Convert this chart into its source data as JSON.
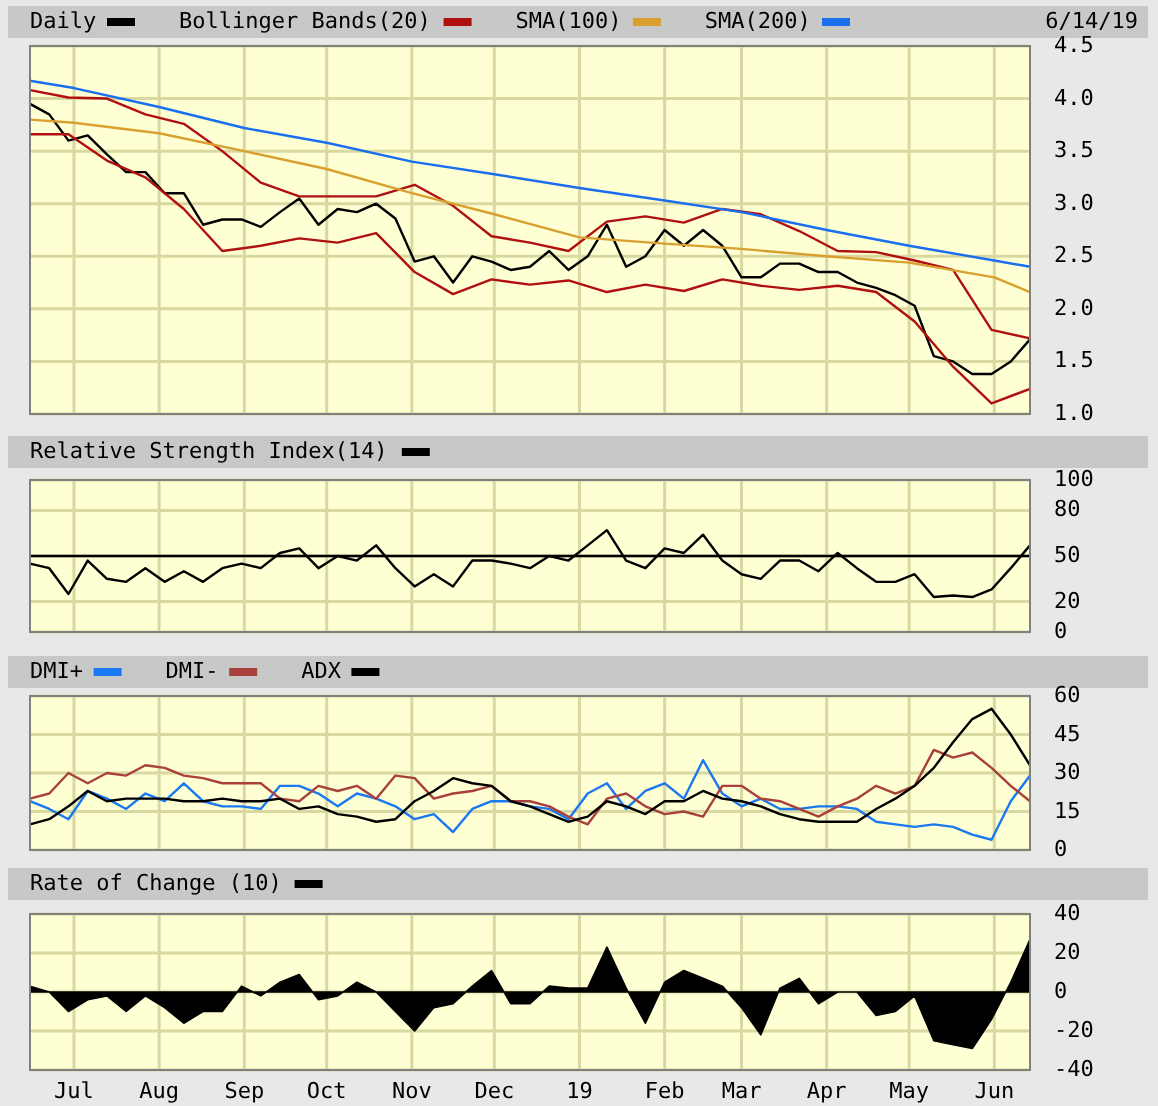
{
  "chart_data": [
    {
      "type": "line",
      "x": [
        "2018-06-15",
        "2018-06-22",
        "2018-06-29",
        "2018-07-06",
        "2018-07-13",
        "2018-07-20",
        "2018-07-27",
        "2018-08-03",
        "2018-08-10",
        "2018-08-17",
        "2018-08-24",
        "2018-08-31",
        "2018-09-07",
        "2018-09-14",
        "2018-09-21",
        "2018-09-28",
        "2018-10-05",
        "2018-10-12",
        "2018-10-19",
        "2018-10-26",
        "2018-11-02",
        "2018-11-09",
        "2018-11-16",
        "2018-11-23",
        "2018-11-30",
        "2018-12-07",
        "2018-12-14",
        "2018-12-21",
        "2018-12-28",
        "2019-01-04",
        "2019-01-11",
        "2019-01-18",
        "2019-01-25",
        "2019-02-01",
        "2019-02-08",
        "2019-02-15",
        "2019-02-22",
        "2019-03-01",
        "2019-03-08",
        "2019-03-15",
        "2019-03-22",
        "2019-03-29",
        "2019-04-05",
        "2019-04-12",
        "2019-04-19",
        "2019-04-26",
        "2019-05-03",
        "2019-05-10",
        "2019-05-17",
        "2019-05-24",
        "2019-05-31",
        "2019-06-07",
        "2019-06-14"
      ],
      "xlim": [
        "2018-06-15",
        "2019-06-14"
      ],
      "xticks": [
        {
          "value": "2018-07-01",
          "label": null
        },
        {
          "value": "2018-08-01",
          "label": null
        },
        {
          "value": "2018-09-01",
          "label": null
        },
        {
          "value": "2018-10-01",
          "label": null
        },
        {
          "value": "2018-11-01",
          "label": null
        },
        {
          "value": "2018-12-01",
          "label": null
        },
        {
          "value": "2019-01-01",
          "label": null
        },
        {
          "value": "2019-02-01",
          "label": null
        },
        {
          "value": "2019-03-01",
          "label": null
        },
        {
          "value": "2019-04-01",
          "label": null
        },
        {
          "value": "2019-05-01",
          "label": null
        },
        {
          "value": "2019-06-01",
          "label": null
        }
      ],
      "ylim": [
        1,
        4.5
      ],
      "yticks": [
        {
          "value": 1,
          "label": "1.0"
        },
        {
          "value": 1.5,
          "label": "1.5"
        },
        {
          "value": 2,
          "label": "2.0"
        },
        {
          "value": 2.5,
          "label": "2.5"
        },
        {
          "value": 3,
          "label": "3.0"
        },
        {
          "value": 3.5,
          "label": "3.5"
        },
        {
          "value": 4,
          "label": "4.0"
        },
        {
          "value": 4.5,
          "label": "4.5"
        }
      ],
      "grid": true,
      "tick_labels": "y",
      "legend": "top left",
      "annotations": [
        "6/14/19"
      ],
      "series": [
        {
          "name": "Daily",
          "color": "#000000",
          "values": [
            3.95,
            3.85,
            3.6,
            3.65,
            3.47,
            3.3,
            3.3,
            3.1,
            3.1,
            2.8,
            2.85,
            2.85,
            2.78,
            2.92,
            3.05,
            2.8,
            2.95,
            2.92,
            3.0,
            2.86,
            2.45,
            2.5,
            2.25,
            2.5,
            2.45,
            2.37,
            2.4,
            2.55,
            2.37,
            2.5,
            2.8,
            2.4,
            2.5,
            2.75,
            2.6,
            2.75,
            2.6,
            2.3,
            2.3,
            2.43,
            2.43,
            2.35,
            2.35,
            2.25,
            2.2,
            2.13,
            2.03,
            1.55,
            1.5,
            1.38,
            1.38,
            1.5,
            1.71
          ]
        },
        {
          "name": "Bollinger Bands(20)",
          "color": "#b01010",
          "x": [
            "2018-06-15",
            "2018-06-29",
            "2018-07-13",
            "2018-07-27",
            "2018-08-10",
            "2018-08-24",
            "2018-09-07",
            "2018-09-21",
            "2018-10-05",
            "2018-10-19",
            "2018-11-02",
            "2018-11-16",
            "2018-11-30",
            "2018-12-14",
            "2018-12-28",
            "2019-01-11",
            "2019-01-25",
            "2019-02-08",
            "2019-02-22",
            "2019-03-08",
            "2019-03-22",
            "2019-04-05",
            "2019-04-19",
            "2019-05-03",
            "2019-05-17",
            "2019-05-31",
            "2019-06-14"
          ],
          "values": [
            4.08,
            4.01,
            4.0,
            3.85,
            3.76,
            3.5,
            3.2,
            3.07,
            3.07,
            3.07,
            3.18,
            2.98,
            2.69,
            2.63,
            2.55,
            2.83,
            2.88,
            2.82,
            2.95,
            2.9,
            2.74,
            2.55,
            2.54,
            2.46,
            2.37,
            1.8,
            1.72
          ]
        },
        {
          "color": "#b01010",
          "x": [
            "2018-06-15",
            "2018-06-29",
            "2018-07-13",
            "2018-07-27",
            "2018-08-10",
            "2018-08-24",
            "2018-09-07",
            "2018-09-21",
            "2018-10-05",
            "2018-10-19",
            "2018-11-02",
            "2018-11-16",
            "2018-11-30",
            "2018-12-14",
            "2018-12-28",
            "2019-01-11",
            "2019-01-25",
            "2019-02-08",
            "2019-02-22",
            "2019-03-08",
            "2019-03-22",
            "2019-04-05",
            "2019-04-19",
            "2019-05-03",
            "2019-05-17",
            "2019-05-31",
            "2019-06-14"
          ],
          "values": [
            3.66,
            3.66,
            3.41,
            3.25,
            2.95,
            2.55,
            2.6,
            2.67,
            2.63,
            2.72,
            2.35,
            2.14,
            2.28,
            2.23,
            2.27,
            2.16,
            2.23,
            2.17,
            2.28,
            2.22,
            2.18,
            2.22,
            2.16,
            1.88,
            1.45,
            1.1,
            1.24
          ]
        },
        {
          "name": "SMA(100)",
          "color": "#d9a030",
          "x": [
            "2018-06-15",
            "2018-07-01",
            "2018-08-01",
            "2018-09-01",
            "2018-10-01",
            "2018-11-01",
            "2018-12-01",
            "2019-01-01",
            "2019-02-01",
            "2019-03-01",
            "2019-04-01",
            "2019-05-01",
            "2019-06-01",
            "2019-06-14"
          ],
          "values": [
            3.8,
            3.77,
            3.67,
            3.5,
            3.33,
            3.1,
            2.9,
            2.68,
            2.62,
            2.57,
            2.5,
            2.44,
            2.3,
            2.16
          ]
        },
        {
          "name": "SMA(200)",
          "color": "#1a6ef0",
          "x": [
            "2018-06-15",
            "2018-07-01",
            "2018-08-01",
            "2018-09-01",
            "2018-10-01",
            "2018-11-01",
            "2018-12-01",
            "2019-01-01",
            "2019-02-01",
            "2019-03-01",
            "2019-04-01",
            "2019-05-01",
            "2019-06-01",
            "2019-06-14"
          ],
          "values": [
            4.17,
            4.1,
            3.92,
            3.72,
            3.58,
            3.4,
            3.28,
            3.15,
            3.03,
            2.92,
            2.75,
            2.6,
            2.46,
            2.4
          ]
        }
      ]
    },
    {
      "type": "line",
      "x": [
        "2018-06-15",
        "2018-06-22",
        "2018-06-29",
        "2018-07-06",
        "2018-07-13",
        "2018-07-20",
        "2018-07-27",
        "2018-08-03",
        "2018-08-10",
        "2018-08-17",
        "2018-08-24",
        "2018-08-31",
        "2018-09-07",
        "2018-09-14",
        "2018-09-21",
        "2018-09-28",
        "2018-10-05",
        "2018-10-12",
        "2018-10-19",
        "2018-10-26",
        "2018-11-02",
        "2018-11-09",
        "2018-11-16",
        "2018-11-23",
        "2018-11-30",
        "2018-12-07",
        "2018-12-14",
        "2018-12-21",
        "2018-12-28",
        "2019-01-04",
        "2019-01-11",
        "2019-01-18",
        "2019-01-25",
        "2019-02-01",
        "2019-02-08",
        "2019-02-15",
        "2019-02-22",
        "2019-03-01",
        "2019-03-08",
        "2019-03-15",
        "2019-03-22",
        "2019-03-29",
        "2019-04-05",
        "2019-04-12",
        "2019-04-19",
        "2019-04-26",
        "2019-05-03",
        "2019-05-10",
        "2019-05-17",
        "2019-05-24",
        "2019-05-31",
        "2019-06-07",
        "2019-06-14"
      ],
      "xlim": [
        "2018-06-15",
        "2019-06-14"
      ],
      "xticks": [
        {
          "value": "2018-07-01",
          "label": null
        },
        {
          "value": "2018-08-01",
          "label": null
        },
        {
          "value": "2018-09-01",
          "label": null
        },
        {
          "value": "2018-10-01",
          "label": null
        },
        {
          "value": "2018-11-01",
          "label": null
        },
        {
          "value": "2018-12-01",
          "label": null
        },
        {
          "value": "2019-01-01",
          "label": null
        },
        {
          "value": "2019-02-01",
          "label": null
        },
        {
          "value": "2019-03-01",
          "label": null
        },
        {
          "value": "2019-04-01",
          "label": null
        },
        {
          "value": "2019-05-01",
          "label": null
        },
        {
          "value": "2019-06-01",
          "label": null
        }
      ],
      "ylim": [
        0,
        100
      ],
      "yticks": [
        0,
        20,
        50,
        80,
        100
      ],
      "grid": true,
      "tick_labels": "y",
      "legend": "top left",
      "ref_lines": [
        {
          "axis": "y",
          "value": 50,
          "color": "#000000"
        }
      ],
      "series": [
        {
          "name": "Relative Strength Index(14)",
          "color": "#000000",
          "values": [
            45,
            42,
            25,
            47,
            35,
            33,
            42,
            33,
            40,
            33,
            42,
            45,
            42,
            52,
            55,
            42,
            50,
            47,
            57,
            42,
            30,
            38,
            30,
            47,
            47,
            45,
            42,
            50,
            47,
            57,
            67,
            47,
            42,
            55,
            52,
            64,
            47,
            38,
            35,
            47,
            47,
            40,
            52,
            42,
            33,
            33,
            38,
            23,
            24,
            23,
            28,
            42,
            57
          ]
        }
      ]
    },
    {
      "type": "line",
      "x": [
        "2018-06-15",
        "2018-06-22",
        "2018-06-29",
        "2018-07-06",
        "2018-07-13",
        "2018-07-20",
        "2018-07-27",
        "2018-08-03",
        "2018-08-10",
        "2018-08-17",
        "2018-08-24",
        "2018-08-31",
        "2018-09-07",
        "2018-09-14",
        "2018-09-21",
        "2018-09-28",
        "2018-10-05",
        "2018-10-12",
        "2018-10-19",
        "2018-10-26",
        "2018-11-02",
        "2018-11-09",
        "2018-11-16",
        "2018-11-23",
        "2018-11-30",
        "2018-12-07",
        "2018-12-14",
        "2018-12-21",
        "2018-12-28",
        "2019-01-04",
        "2019-01-11",
        "2019-01-18",
        "2019-01-25",
        "2019-02-01",
        "2019-02-08",
        "2019-02-15",
        "2019-02-22",
        "2019-03-01",
        "2019-03-08",
        "2019-03-15",
        "2019-03-22",
        "2019-03-29",
        "2019-04-05",
        "2019-04-12",
        "2019-04-19",
        "2019-04-26",
        "2019-05-03",
        "2019-05-10",
        "2019-05-17",
        "2019-05-24",
        "2019-05-31",
        "2019-06-07",
        "2019-06-14"
      ],
      "xlim": [
        "2018-06-15",
        "2019-06-14"
      ],
      "xticks": [
        {
          "value": "2018-07-01",
          "label": null
        },
        {
          "value": "2018-08-01",
          "label": null
        },
        {
          "value": "2018-09-01",
          "label": null
        },
        {
          "value": "2018-10-01",
          "label": null
        },
        {
          "value": "2018-11-01",
          "label": null
        },
        {
          "value": "2018-12-01",
          "label": null
        },
        {
          "value": "2019-01-01",
          "label": null
        },
        {
          "value": "2019-02-01",
          "label": null
        },
        {
          "value": "2019-03-01",
          "label": null
        },
        {
          "value": "2019-04-01",
          "label": null
        },
        {
          "value": "2019-05-01",
          "label": null
        },
        {
          "value": "2019-06-01",
          "label": null
        }
      ],
      "ylim": [
        0,
        60
      ],
      "yticks": [
        0,
        15,
        30,
        45,
        60
      ],
      "grid": true,
      "tick_labels": "y",
      "legend": "top left",
      "series": [
        {
          "name": "DMI+",
          "color": "#1a78f0",
          "values": [
            19,
            16,
            12,
            23,
            20,
            16,
            22,
            19,
            26,
            19,
            17,
            17,
            16,
            25,
            25,
            22,
            17,
            22,
            20,
            17,
            12,
            14,
            7,
            16,
            19,
            19,
            17,
            16,
            12,
            22,
            26,
            16,
            23,
            26,
            20,
            35,
            22,
            17,
            20,
            16,
            16,
            17,
            17,
            16,
            11,
            10,
            9,
            10,
            9,
            6,
            4,
            19,
            29
          ]
        },
        {
          "name": "DMI-",
          "color": "#a8403c",
          "values": [
            20,
            22,
            30,
            26,
            30,
            29,
            33,
            32,
            29,
            28,
            26,
            26,
            26,
            20,
            19,
            25,
            23,
            25,
            20,
            29,
            28,
            20,
            22,
            23,
            25,
            19,
            19,
            17,
            13,
            10,
            20,
            22,
            17,
            14,
            15,
            13,
            25,
            25,
            20,
            19,
            16,
            13,
            17,
            20,
            25,
            22,
            25,
            39,
            36,
            38,
            32,
            25,
            19
          ]
        },
        {
          "name": "ADX",
          "color": "#000000",
          "values": [
            10,
            12,
            17,
            23,
            19,
            20,
            20,
            20,
            19,
            19,
            20,
            19,
            19,
            20,
            16,
            17,
            14,
            13,
            11,
            12,
            19,
            23,
            28,
            26,
            25,
            19,
            17,
            14,
            11,
            13,
            19,
            17,
            14,
            19,
            19,
            23,
            20,
            19,
            17,
            14,
            12,
            11,
            11,
            11,
            16,
            20,
            25,
            32,
            42,
            51,
            55,
            45,
            33
          ]
        }
      ]
    },
    {
      "type": "area",
      "x": [
        "2018-06-15",
        "2018-06-22",
        "2018-06-29",
        "2018-07-06",
        "2018-07-13",
        "2018-07-20",
        "2018-07-27",
        "2018-08-03",
        "2018-08-10",
        "2018-08-17",
        "2018-08-24",
        "2018-08-31",
        "2018-09-07",
        "2018-09-14",
        "2018-09-21",
        "2018-09-28",
        "2018-10-05",
        "2018-10-12",
        "2018-10-19",
        "2018-10-26",
        "2018-11-02",
        "2018-11-09",
        "2018-11-16",
        "2018-11-23",
        "2018-11-30",
        "2018-12-07",
        "2018-12-14",
        "2018-12-21",
        "2018-12-28",
        "2019-01-04",
        "2019-01-11",
        "2019-01-18",
        "2019-01-25",
        "2019-02-01",
        "2019-02-08",
        "2019-02-15",
        "2019-02-22",
        "2019-03-01",
        "2019-03-08",
        "2019-03-15",
        "2019-03-22",
        "2019-03-29",
        "2019-04-05",
        "2019-04-12",
        "2019-04-19",
        "2019-04-26",
        "2019-05-03",
        "2019-05-10",
        "2019-05-17",
        "2019-05-24",
        "2019-05-31",
        "2019-06-07",
        "2019-06-14"
      ],
      "xlim": [
        "2018-06-15",
        "2019-06-14"
      ],
      "xticks": [
        {
          "value": "2018-07-01",
          "label": "Jul"
        },
        {
          "value": "2018-08-01",
          "label": "Aug"
        },
        {
          "value": "2018-09-01",
          "label": "Sep"
        },
        {
          "value": "2018-10-01",
          "label": "Oct"
        },
        {
          "value": "2018-11-01",
          "label": "Nov"
        },
        {
          "value": "2018-12-01",
          "label": "Dec"
        },
        {
          "value": "2019-01-01",
          "label": "19"
        },
        {
          "value": "2019-02-01",
          "label": "Feb"
        },
        {
          "value": "2019-03-01",
          "label": "Mar"
        },
        {
          "value": "2019-04-01",
          "label": "Apr"
        },
        {
          "value": "2019-05-01",
          "label": "May"
        },
        {
          "value": "2019-06-01",
          "label": "Jun"
        }
      ],
      "ylim": [
        -40,
        40
      ],
      "yticks": [
        -40,
        -20,
        0,
        20,
        40
      ],
      "grid": true,
      "legend": "top left",
      "series": [
        {
          "name": "Rate of Change (10)",
          "color": "#000000",
          "values": [
            3,
            0,
            -10,
            -4,
            -2,
            -10,
            -2,
            -8,
            -16,
            -10,
            -10,
            3,
            -2,
            5,
            9,
            -4,
            -2,
            5,
            0,
            -10,
            -20,
            -8,
            -6,
            3,
            11,
            -6,
            -6,
            3,
            2,
            2,
            23,
            2,
            -16,
            5,
            11,
            7,
            3,
            -8,
            -22,
            2,
            7,
            -6,
            0,
            0,
            -12,
            -10,
            -2,
            -25,
            -27,
            -29,
            -14,
            5,
            27
          ]
        }
      ]
    }
  ]
}
